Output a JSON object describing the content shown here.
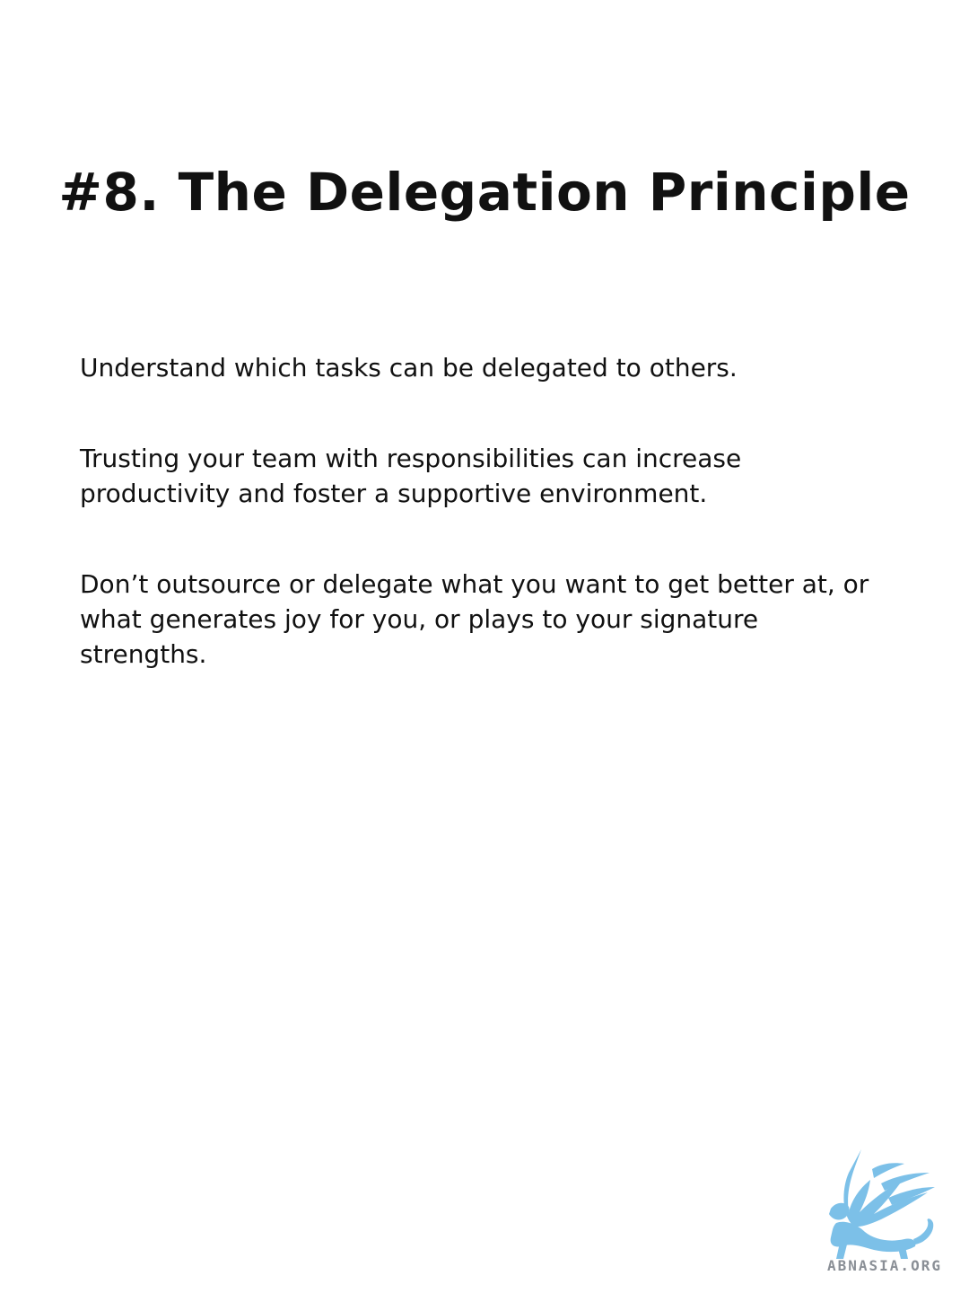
{
  "slide": {
    "title": "#8. The Delegation Principle",
    "paragraphs": [
      "Understand which tasks can be delegated to others.",
      "Trusting your team with responsibilities can increase productivity and foster a supportive environment.",
      "Don’t outsource or delegate what you want to get better at, or what generates joy for you, or plays to your signature strengths."
    ]
  },
  "watermark": {
    "icon": "griffin-logo-icon",
    "text": "ABNASIA.ORG",
    "color": "#7cc0e8"
  }
}
